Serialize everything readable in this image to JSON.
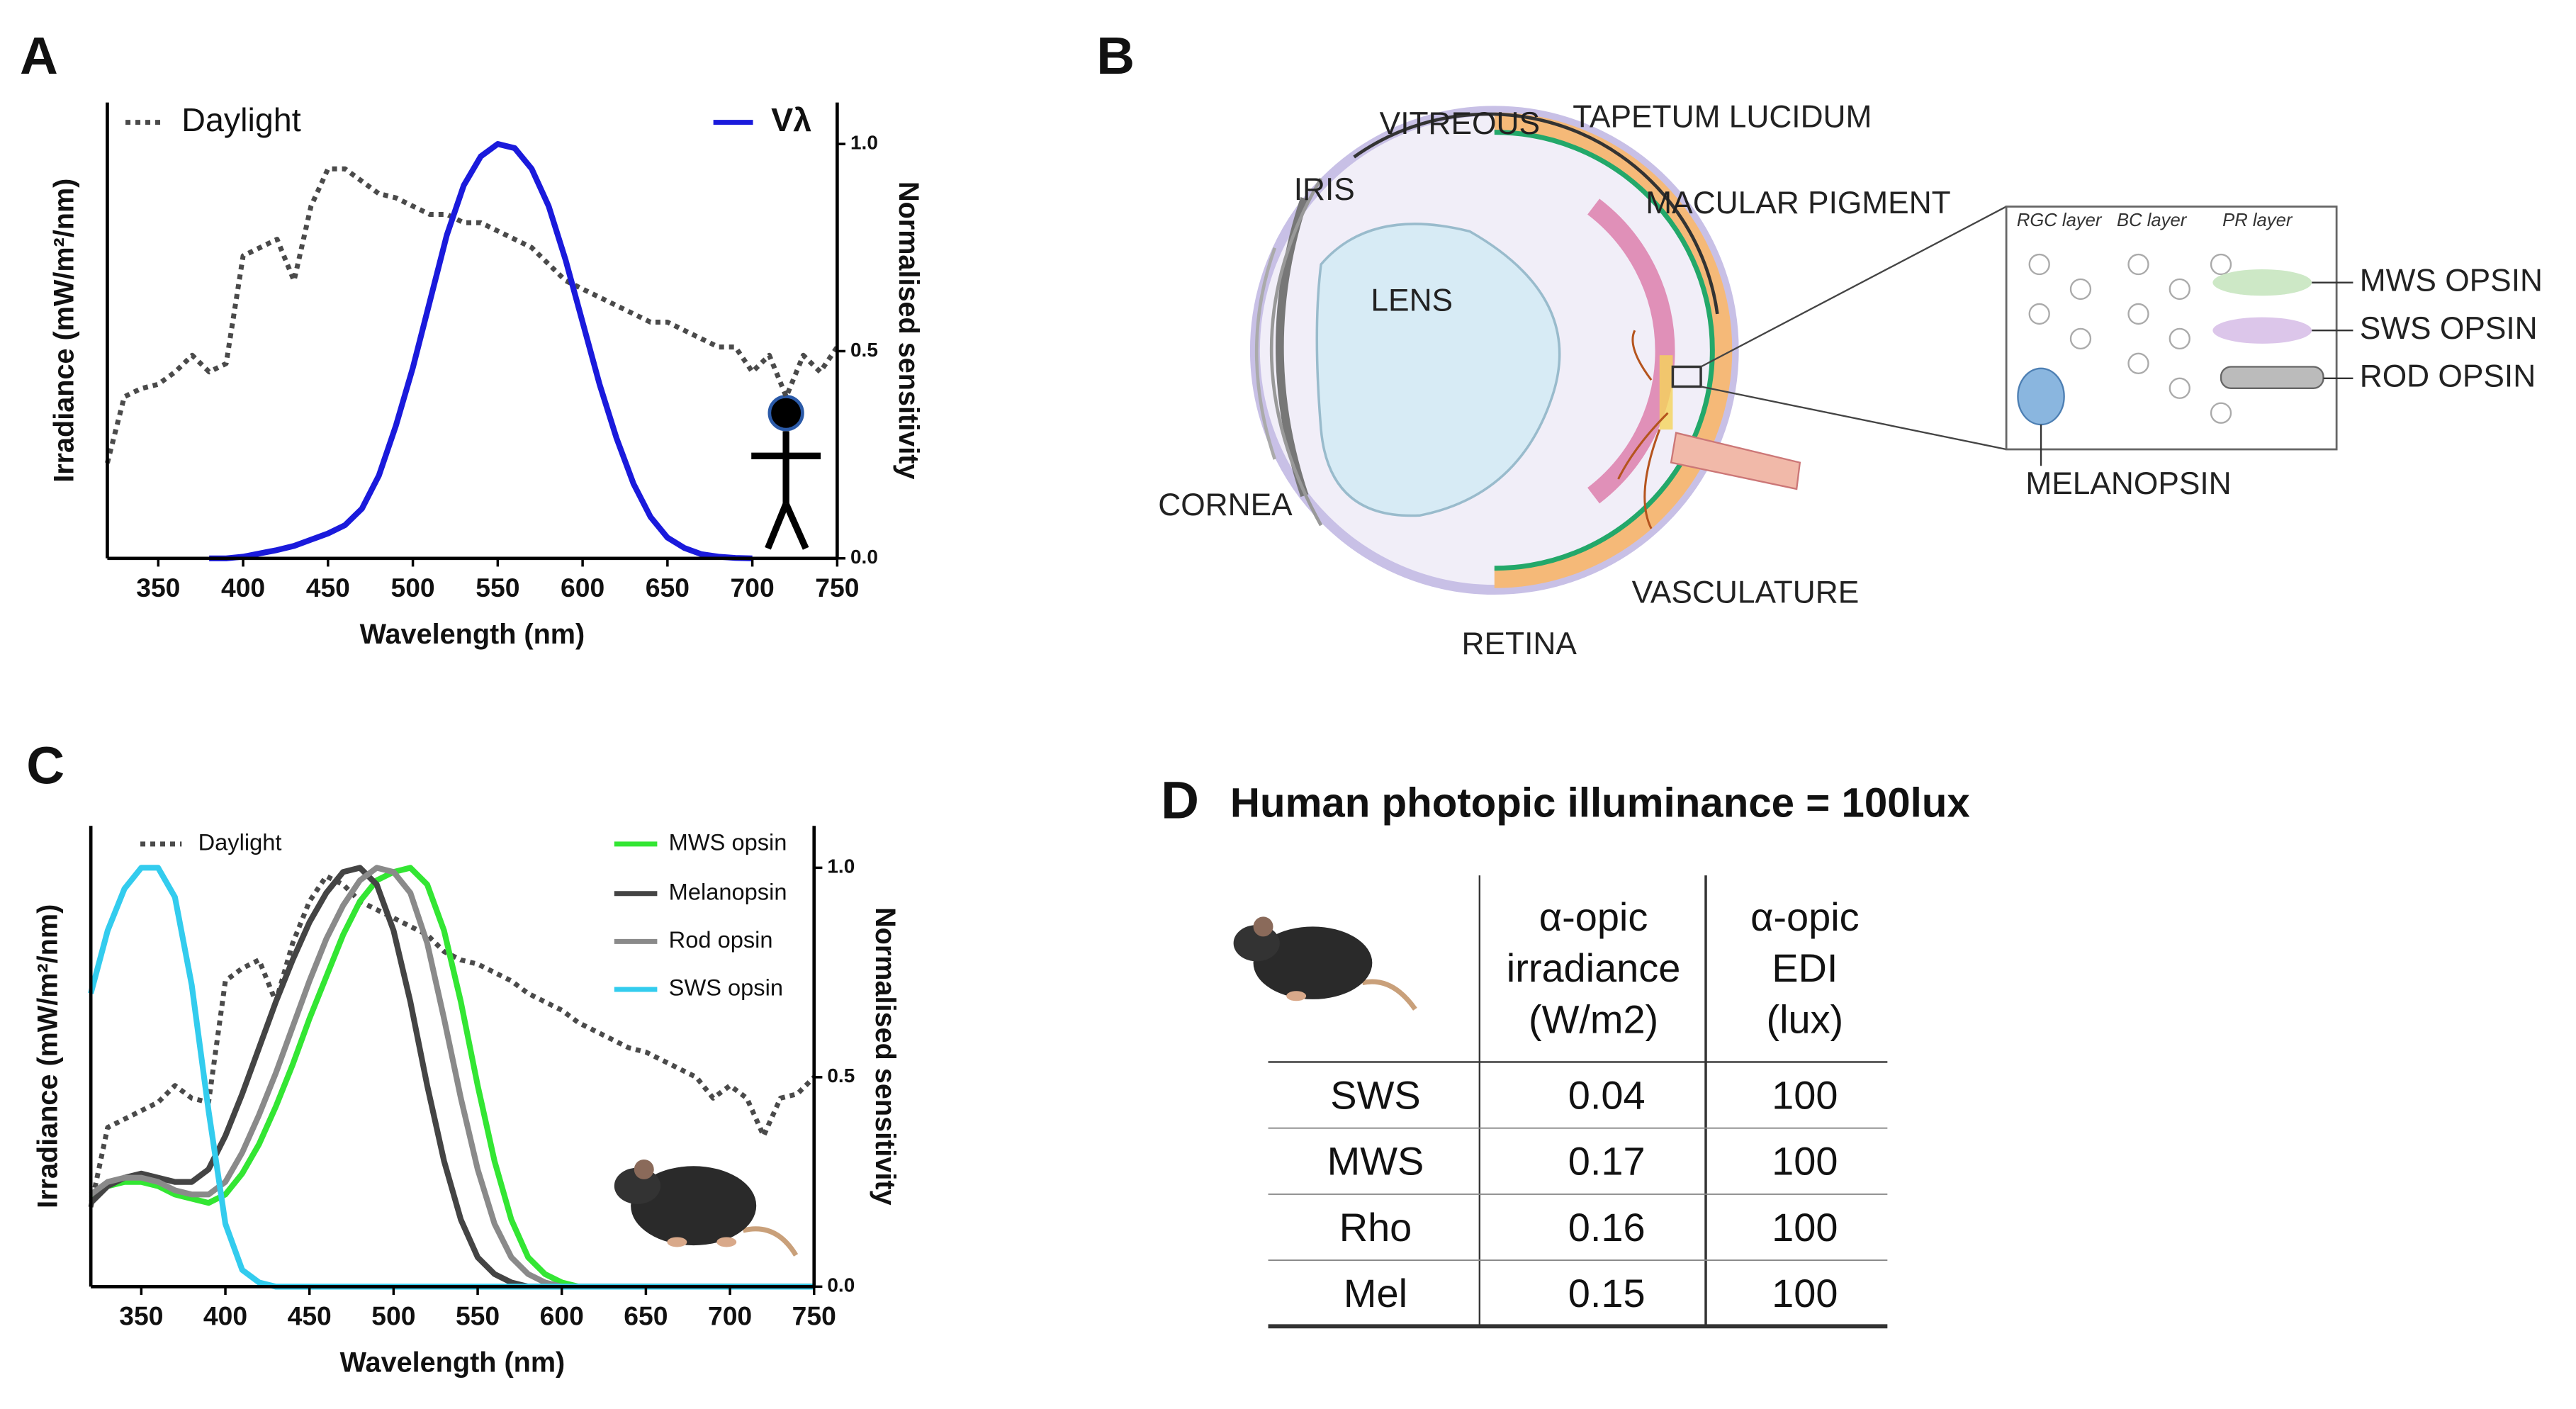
{
  "panels": [
    "A",
    "B",
    "C",
    "D"
  ],
  "chart_data": [
    {
      "type": "line",
      "xlabel": "Wavelength (nm)",
      "ylabel": "Irradiance (mW/m²/nm)",
      "y2label": "Normalised sensitivity",
      "x": [
        320,
        330,
        340,
        350,
        360,
        370,
        380,
        390,
        400,
        410,
        420,
        430,
        440,
        450,
        460,
        470,
        480,
        490,
        500,
        510,
        520,
        530,
        540,
        550,
        560,
        570,
        580,
        590,
        600,
        610,
        620,
        630,
        640,
        650,
        660,
        670,
        680,
        690,
        700,
        710,
        720,
        730,
        740,
        750
      ],
      "xlim": [
        320,
        750
      ],
      "xticks": [
        350,
        400,
        450,
        500,
        550,
        600,
        650,
        700,
        750
      ],
      "ylim": [
        0,
        1.1
      ],
      "y2lim": [
        0,
        1.1
      ],
      "y2ticks": [
        {
          "value": 0,
          "label": "0.0"
        },
        {
          "value": 0.5,
          "label": "0.5"
        },
        {
          "value": 1,
          "label": "1.0"
        }
      ],
      "series": [
        {
          "name": "Daylight",
          "color": "#4a4a4a",
          "style": "dotted",
          "axis": "y",
          "values": [
            0.23,
            0.39,
            0.41,
            0.42,
            0.45,
            0.49,
            0.45,
            0.47,
            0.73,
            0.75,
            0.77,
            0.67,
            0.85,
            0.94,
            0.94,
            0.91,
            0.88,
            0.87,
            0.85,
            0.83,
            0.83,
            0.81,
            0.81,
            0.79,
            0.77,
            0.75,
            0.71,
            0.67,
            0.65,
            0.63,
            0.61,
            0.59,
            0.57,
            0.57,
            0.55,
            0.53,
            0.51,
            0.51,
            0.45,
            0.49,
            0.39,
            0.49,
            0.45,
            0.51
          ]
        },
        {
          "name": "Vλ",
          "color": "#1a1adc",
          "style": "solid",
          "axis": "y2",
          "values": [
            null,
            null,
            null,
            null,
            null,
            null,
            0,
            0,
            0.004,
            0.012,
            0.02,
            0.03,
            0.045,
            0.06,
            0.08,
            0.12,
            0.2,
            0.32,
            0.46,
            0.62,
            0.78,
            0.9,
            0.97,
            1.0,
            0.99,
            0.94,
            0.85,
            0.72,
            0.57,
            0.42,
            0.29,
            0.18,
            0.1,
            0.05,
            0.025,
            0.01,
            0.004,
            0.001,
            0,
            null,
            null,
            null,
            null,
            null
          ]
        }
      ]
    },
    {
      "type": "line",
      "xlabel": "Wavelength (nm)",
      "ylabel": "Irradiance (mW/m²/nm)",
      "y2label": "Normalised sensitivity",
      "x": [
        320,
        330,
        340,
        350,
        360,
        370,
        380,
        390,
        400,
        410,
        420,
        430,
        440,
        450,
        460,
        470,
        480,
        490,
        500,
        510,
        520,
        530,
        540,
        550,
        560,
        570,
        580,
        590,
        600,
        610,
        620,
        630,
        640,
        650,
        660,
        670,
        680,
        690,
        700,
        710,
        720,
        730,
        740,
        750
      ],
      "xlim": [
        320,
        750
      ],
      "xticks": [
        350,
        400,
        450,
        500,
        550,
        600,
        650,
        700,
        750
      ],
      "ylim": [
        0,
        1.1
      ],
      "y2lim": [
        0,
        1.1
      ],
      "y2ticks": [
        {
          "value": 0,
          "label": "0.0"
        },
        {
          "value": 0.5,
          "label": "0.5"
        },
        {
          "value": 1,
          "label": "1.0"
        }
      ],
      "series": [
        {
          "name": "Daylight",
          "color": "#4a4a4a",
          "style": "dotted",
          "axis": "y",
          "values": [
            0.19,
            0.38,
            0.4,
            0.42,
            0.44,
            0.48,
            0.45,
            0.44,
            0.73,
            0.76,
            0.78,
            0.68,
            0.82,
            0.92,
            0.98,
            0.96,
            0.92,
            0.9,
            0.88,
            0.86,
            0.84,
            0.8,
            0.78,
            0.77,
            0.75,
            0.73,
            0.7,
            0.68,
            0.66,
            0.63,
            0.61,
            0.59,
            0.57,
            0.56,
            0.54,
            0.52,
            0.5,
            0.45,
            0.48,
            0.45,
            0.36,
            0.45,
            0.46,
            0.5
          ]
        },
        {
          "name": "MWS opsin",
          "color": "#33e633",
          "style": "solid",
          "axis": "y2",
          "values": [
            0.21,
            0.24,
            0.25,
            0.25,
            0.24,
            0.22,
            0.21,
            0.2,
            0.22,
            0.27,
            0.34,
            0.43,
            0.53,
            0.64,
            0.74,
            0.84,
            0.92,
            0.97,
            0.99,
            1.0,
            0.96,
            0.85,
            0.68,
            0.48,
            0.3,
            0.16,
            0.07,
            0.03,
            0.01,
            0,
            0,
            0,
            0,
            0,
            0,
            0,
            0,
            0,
            0,
            0,
            0,
            0,
            0,
            0
          ]
        },
        {
          "name": "Melanopsin",
          "color": "#444444",
          "style": "solid",
          "axis": "y2",
          "values": [
            0.2,
            0.24,
            0.26,
            0.27,
            0.26,
            0.25,
            0.25,
            0.28,
            0.36,
            0.46,
            0.57,
            0.68,
            0.78,
            0.87,
            0.94,
            0.99,
            1.0,
            0.96,
            0.85,
            0.68,
            0.48,
            0.3,
            0.16,
            0.07,
            0.03,
            0.01,
            0,
            0,
            0,
            0,
            0,
            0,
            0,
            0,
            0,
            0,
            0,
            0,
            0,
            0,
            0,
            0,
            0,
            0
          ]
        },
        {
          "name": "Rod opsin",
          "color": "#8a8a8a",
          "style": "solid",
          "axis": "y2",
          "values": [
            0.22,
            0.25,
            0.26,
            0.26,
            0.25,
            0.23,
            0.22,
            0.22,
            0.25,
            0.32,
            0.41,
            0.51,
            0.62,
            0.73,
            0.83,
            0.91,
            0.97,
            1.0,
            0.99,
            0.94,
            0.82,
            0.64,
            0.45,
            0.28,
            0.15,
            0.07,
            0.03,
            0.01,
            0,
            0,
            0,
            0,
            0,
            0,
            0,
            0,
            0,
            0,
            0,
            0,
            0,
            0,
            0,
            0
          ]
        },
        {
          "name": "SWS opsin",
          "color": "#33ccee",
          "style": "solid",
          "axis": "y2",
          "values": [
            0.7,
            0.85,
            0.95,
            1.0,
            1.0,
            0.93,
            0.72,
            0.42,
            0.15,
            0.04,
            0.01,
            0,
            0,
            0,
            0,
            0,
            0,
            0,
            0,
            0,
            0,
            0,
            0,
            0,
            0,
            0,
            0,
            0,
            0,
            0,
            0,
            0,
            0,
            0,
            0,
            0,
            0,
            0,
            0,
            0,
            0,
            0,
            0,
            0
          ]
        }
      ]
    }
  ],
  "diagram": {
    "labels": [
      "VITREOUS",
      "TAPETUM LUCIDUM",
      "IRIS",
      "MACULAR PIGMENT",
      "LENS",
      "CORNEA",
      "RETINA",
      "VASCULATURE"
    ],
    "inset": {
      "layers": [
        "RGC layer",
        "BC layer",
        "PR layer"
      ],
      "labels": [
        "MWS OPSIN",
        "SWS OPSIN",
        "ROD OPSIN",
        "MELANOPSIN"
      ]
    }
  },
  "table": {
    "title": "Human photopic illuminance = 100lux",
    "columns": [
      [
        "α-opic",
        "irradiance",
        "(W/m2)"
      ],
      [
        "α-opic",
        "EDI",
        "(lux)"
      ]
    ],
    "rows": [
      [
        "SWS",
        "0.04",
        "100"
      ],
      [
        "MWS",
        "0.17",
        "100"
      ],
      [
        "Rho",
        "0.16",
        "100"
      ],
      [
        "Mel",
        "0.15",
        "100"
      ]
    ]
  }
}
